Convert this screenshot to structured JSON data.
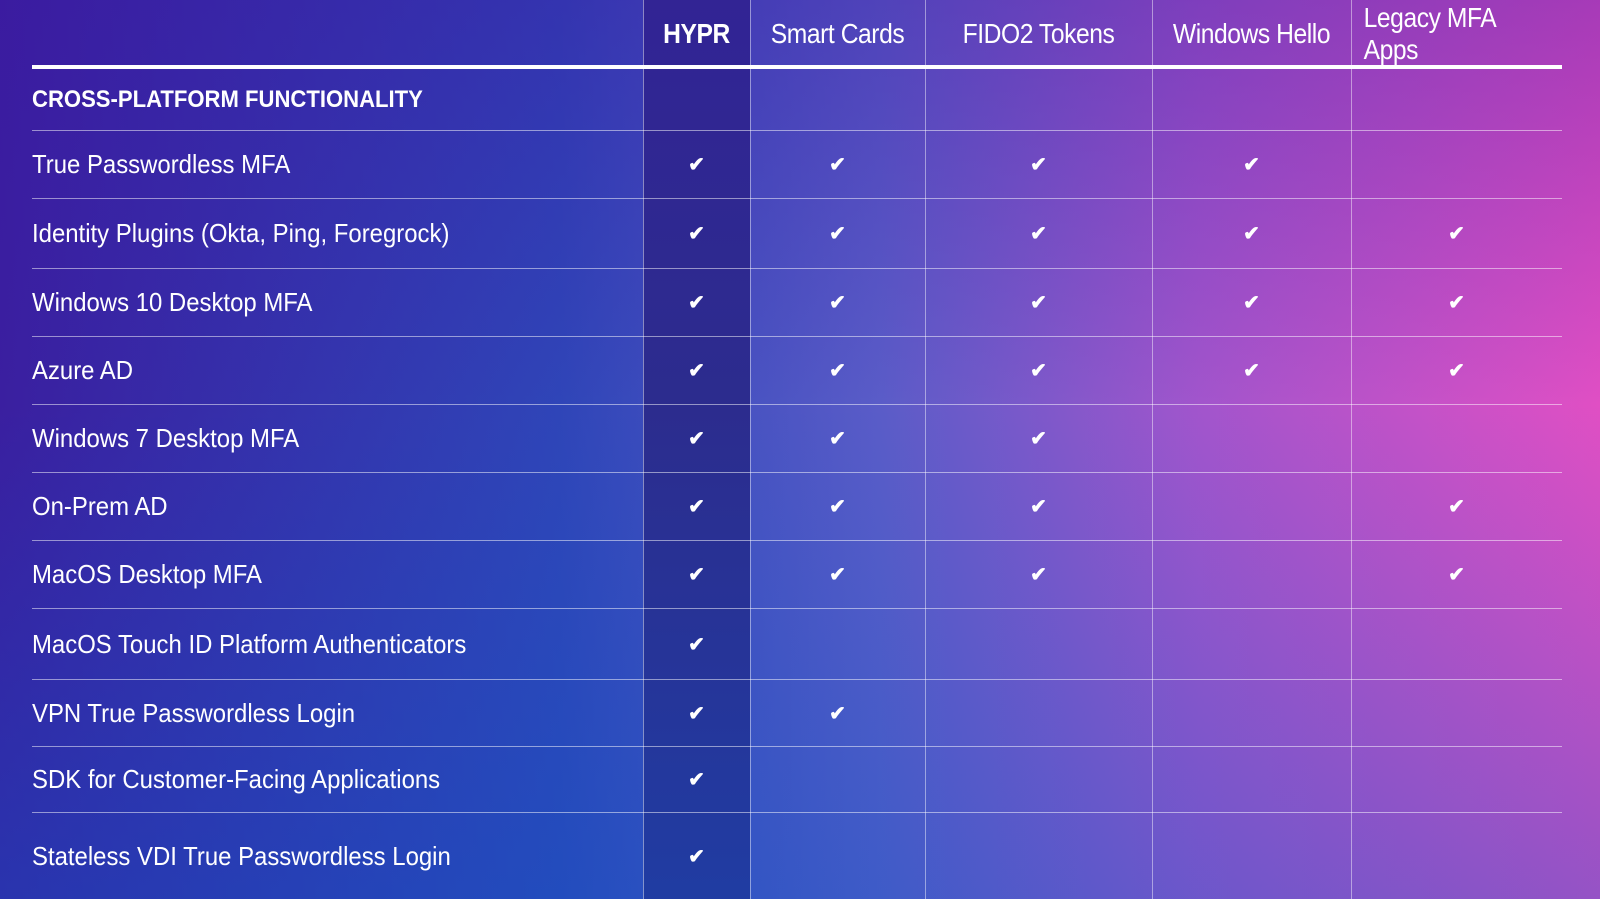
{
  "columns": [
    "HYPR",
    "Smart Cards",
    "FIDO2 Tokens",
    "Windows Hello",
    "Legacy MFA Apps"
  ],
  "section_title": "CROSS-PLATFORM FUNCTIONALITY",
  "check_icon": "checkmark-icon",
  "colors": {
    "hypr_column": "#2c2c8e",
    "gradient_left": "#3a1fa0",
    "gradient_right": "#e04fc4"
  },
  "rows": [
    {
      "label": "True Passwordless MFA",
      "checks": [
        true,
        true,
        true,
        true,
        false
      ]
    },
    {
      "label": "Identity Plugins (Okta, Ping, Foregrock)",
      "checks": [
        true,
        true,
        true,
        true,
        true
      ]
    },
    {
      "label": "Windows 10 Desktop MFA",
      "checks": [
        true,
        true,
        true,
        true,
        true
      ]
    },
    {
      "label": "Azure AD",
      "checks": [
        true,
        true,
        true,
        true,
        true
      ]
    },
    {
      "label": "Windows 7 Desktop MFA",
      "checks": [
        true,
        true,
        true,
        false,
        false
      ]
    },
    {
      "label": "On-Prem AD",
      "checks": [
        true,
        true,
        true,
        false,
        true
      ]
    },
    {
      "label": "MacOS Desktop MFA",
      "checks": [
        true,
        true,
        true,
        false,
        true
      ]
    },
    {
      "label": "MacOS Touch ID Platform Authenticators",
      "checks": [
        true,
        false,
        false,
        false,
        false
      ]
    },
    {
      "label": "VPN True Passwordless Login",
      "checks": [
        true,
        true,
        false,
        false,
        false
      ]
    },
    {
      "label": "SDK for Customer-Facing Applications",
      "checks": [
        true,
        false,
        false,
        false,
        false
      ]
    },
    {
      "label": "Stateless VDI True Passwordless Login",
      "checks": [
        true,
        false,
        false,
        false,
        false
      ]
    }
  ]
}
